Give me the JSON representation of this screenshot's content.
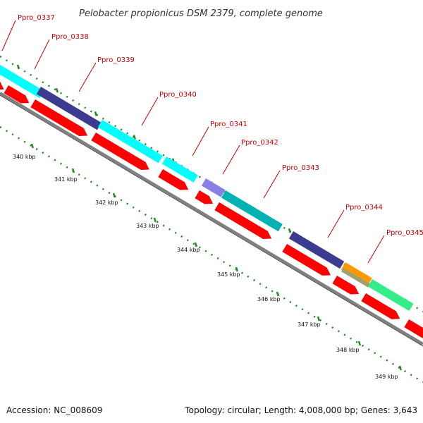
{
  "title": "Pelobacter propionicus DSM 2379, complete genome",
  "footer": {
    "accession": "Accession: NC_008609",
    "summary": "Topology: circular; Length: 4,008,000 bp; Genes: 3,643"
  },
  "colors": {
    "gene_label": "#cc0000",
    "forward_cds": "#ff0000",
    "backbone": "#808080",
    "gc_ticks": "#228b22",
    "cog_cyan": "#00ffff",
    "cog_dark_cyan": "#00b2b2",
    "cog_navy": "#3b3b8f",
    "cog_purple": "#8a7fe6",
    "cog_orange": "#ff9900",
    "cog_gray_green": "#a0a070",
    "cog_green": "#33ee88"
  },
  "gene_labels": [
    "Ppro_0337",
    "Ppro_0338",
    "Ppro_0339",
    "Ppro_0340",
    "Ppro_0341",
    "Ppro_0342",
    "Ppro_0343",
    "Ppro_0344",
    "Ppro_0345"
  ],
  "tick_labels": [
    "340 kbp",
    "341 kbp",
    "342 kbp",
    "343 kbp",
    "344 kbp",
    "345 kbp",
    "346 kbp",
    "347 kbp",
    "348 kbp",
    "349 kbp"
  ]
}
